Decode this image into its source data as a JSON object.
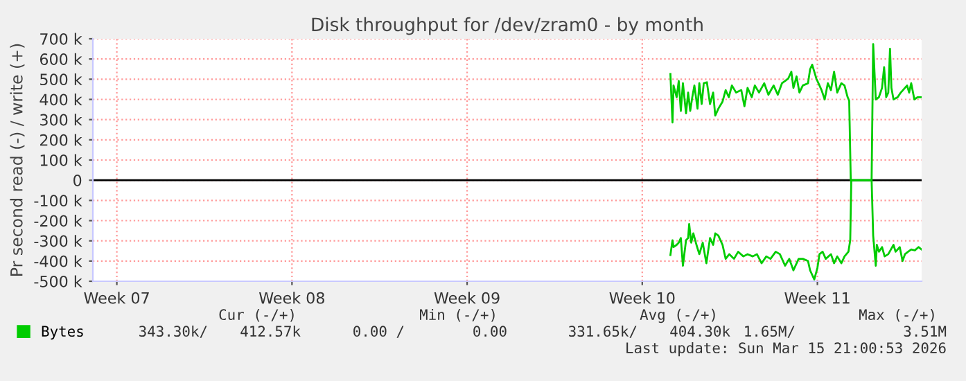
{
  "chart_data": {
    "type": "line",
    "title": "Disk throughput for /dev/zram0 - by month",
    "ylabel": "Pr second read (-) / write (+)",
    "series": [
      {
        "name": "Bytes",
        "color": "#00cc00",
        "x": [
          "2026-03-05T20:00",
          "2026-03-05T22:00",
          "2026-03-05T23:00",
          "2026-03-06T02:00",
          "2026-03-06T04:00",
          "2026-03-06T06:00",
          "2026-03-06T08:00",
          "2026-03-06T11:00",
          "2026-03-06T13:00",
          "2026-03-06T15:00",
          "2026-03-06T17:00",
          "2026-03-06T19:00",
          "2026-03-06T22:00",
          "2026-03-06T23:45",
          "2026-03-07T02:00",
          "2026-03-07T04:00",
          "2026-03-07T07:00",
          "2026-03-07T10:00",
          "2026-03-07T13:00",
          "2026-03-07T15:00",
          "2026-03-07T18:00",
          "2026-03-07T22:00",
          "2026-03-08T01:00",
          "2026-03-08T04:00",
          "2026-03-08T07:00",
          "2026-03-08T11:00",
          "2026-03-08T16:00",
          "2026-03-08T19:00",
          "2026-03-08T22:00",
          "2026-03-09T02:00",
          "2026-03-09T05:00",
          "2026-03-09T09:00",
          "2026-03-09T14:00",
          "2026-03-09T18:00",
          "2026-03-09T23:00",
          "2026-03-10T03:00",
          "2026-03-10T07:00",
          "2026-03-10T10:00",
          "2026-03-10T13:00",
          "2026-03-10T16:00",
          "2026-03-10T18:00",
          "2026-03-10T21:00",
          "2026-03-10T23:45",
          "2026-03-11T03:00",
          "2026-03-11T08:00",
          "2026-03-11T10:00",
          "2026-03-11T12:00",
          "2026-03-11T16:00",
          "2026-03-11T19:00",
          "2026-03-11T21:00",
          "2026-03-12T00:00",
          "2026-03-12T03:00",
          "2026-03-12T06:00",
          "2026-03-12T09:00",
          "2026-03-12T12:00",
          "2026-03-12T16:00",
          "2026-03-12T19:00",
          "2026-03-12T22:00",
          "2026-03-12T23:30",
          "2026-03-13T01:00",
          "2026-03-13T21:00",
          "2026-03-13T22:30",
          "2026-03-14T01:00",
          "2026-03-14T04:00",
          "2026-03-14T07:00",
          "2026-03-14T09:00",
          "2026-03-14T11:00",
          "2026-03-14T13:00",
          "2026-03-14T14:40",
          "2026-03-14T16:00",
          "2026-03-14T18:00",
          "2026-03-14T22:00",
          "2026-03-15T01:00",
          "2026-03-15T05:00",
          "2026-03-15T07:00",
          "2026-03-15T09:00",
          "2026-03-15T11:00",
          "2026-03-15T14:00",
          "2026-03-15T17:00",
          "2026-03-15T21:00"
        ],
        "values": [
          526,
          286,
          469,
          411,
          491,
          343,
          480,
          331,
          434,
          343,
          411,
          469,
          354,
          480,
          377,
          480,
          485,
          377,
          434,
          320,
          354,
          389,
          446,
          411,
          469,
          434,
          446,
          366,
          457,
          411,
          469,
          434,
          480,
          423,
          469,
          423,
          480,
          491,
          503,
          537,
          457,
          514,
          434,
          469,
          480,
          549,
          572,
          503,
          469,
          446,
          400,
          480,
          446,
          537,
          434,
          480,
          469,
          411,
          393,
          0,
          0,
          674,
          400,
          411,
          457,
          560,
          411,
          434,
          651,
          457,
          400,
          411,
          434,
          457,
          469,
          434,
          480,
          400,
          411,
          411
        ]
      },
      {
        "color": "#00cc00",
        "x": [
          "2026-03-05T20:00",
          "2026-03-05T22:00",
          "2026-03-05T23:00",
          "2026-03-06T02:00",
          "2026-03-06T04:00",
          "2026-03-06T06:00",
          "2026-03-06T08:00",
          "2026-03-06T11:00",
          "2026-03-06T13:00",
          "2026-03-06T14:00",
          "2026-03-06T16:00",
          "2026-03-06T18:00",
          "2026-03-06T21:00",
          "2026-03-06T23:45",
          "2026-03-07T03:00",
          "2026-03-07T06:30",
          "2026-03-07T10:00",
          "2026-03-07T13:00",
          "2026-03-07T15:00",
          "2026-03-07T18:00",
          "2026-03-07T22:00",
          "2026-03-08T01:00",
          "2026-03-08T04:30",
          "2026-03-08T09:00",
          "2026-03-08T13:00",
          "2026-03-08T18:00",
          "2026-03-08T22:00",
          "2026-03-09T03:00",
          "2026-03-09T07:00",
          "2026-03-09T11:30",
          "2026-03-09T16:00",
          "2026-03-09T20:00",
          "2026-03-10T01:00",
          "2026-03-10T05:00",
          "2026-03-10T10:00",
          "2026-03-10T14:00",
          "2026-03-10T18:00",
          "2026-03-10T23:00",
          "2026-03-11T03:00",
          "2026-03-11T08:00",
          "2026-03-11T10:00",
          "2026-03-11T14:00",
          "2026-03-11T17:00",
          "2026-03-11T19:00",
          "2026-03-11T22:00",
          "2026-03-12T01:00",
          "2026-03-12T06:00",
          "2026-03-12T09:00",
          "2026-03-12T12:00",
          "2026-03-12T16:00",
          "2026-03-12T19:00",
          "2026-03-12T22:45",
          "2026-03-13T00:30",
          "2026-03-13T01:30",
          "2026-03-13T21:00",
          "2026-03-13T22:30",
          "2026-03-14T01:00",
          "2026-03-14T02:00",
          "2026-03-14T04:00",
          "2026-03-14T07:00",
          "2026-03-14T09:30",
          "2026-03-14T13:00",
          "2026-03-14T18:00",
          "2026-03-14T20:00",
          "2026-03-15T00:00",
          "2026-03-15T02:40",
          "2026-03-15T05:00",
          "2026-03-15T08:00",
          "2026-03-15T11:00",
          "2026-03-15T14:30",
          "2026-03-15T18:00",
          "2026-03-15T21:00"
        ],
        "values": [
          -370,
          -297,
          -331,
          -320,
          -309,
          -286,
          -423,
          -297,
          -286,
          -217,
          -309,
          -263,
          -320,
          -366,
          -309,
          -411,
          -286,
          -320,
          -263,
          -274,
          -320,
          -389,
          -366,
          -389,
          -354,
          -377,
          -366,
          -377,
          -366,
          -411,
          -377,
          -389,
          -354,
          -366,
          -423,
          -389,
          -446,
          -389,
          -389,
          -400,
          -446,
          -491,
          -434,
          -366,
          -354,
          -389,
          -366,
          -411,
          -377,
          -411,
          -377,
          -354,
          -297,
          0,
          0,
          -274,
          -423,
          -320,
          -354,
          -331,
          -377,
          -366,
          -320,
          -354,
          -331,
          -400,
          -366,
          -354,
          -343,
          -347,
          -331,
          -343
        ]
      }
    ],
    "xlim": [
      "2026-02-10T18:00",
      "2026-03-15T21:00"
    ],
    "xticks": [
      {
        "value": "2026-02-11T17:00",
        "label": "Week 07"
      },
      {
        "value": "2026-02-18T17:00",
        "label": "Week 08"
      },
      {
        "value": "2026-02-25T17:00",
        "label": "Week 09"
      },
      {
        "value": "2026-03-04T17:00",
        "label": "Week 10"
      },
      {
        "value": "2026-03-11T17:00",
        "label": "Week 11"
      }
    ],
    "ylim": [
      -500,
      700
    ],
    "yticks": [
      {
        "value": -500,
        "label": "-500 k"
      },
      {
        "value": -400,
        "label": "-400 k"
      },
      {
        "value": -300,
        "label": "-300 k"
      },
      {
        "value": -200,
        "label": "-200 k"
      },
      {
        "value": -100,
        "label": "-100 k"
      },
      0,
      {
        "value": 100,
        "label": "100 k"
      },
      {
        "value": 200,
        "label": "200 k"
      },
      {
        "value": 300,
        "label": "300 k"
      },
      {
        "value": 400,
        "label": "400 k"
      },
      {
        "value": 500,
        "label": "500 k"
      },
      {
        "value": 600,
        "label": "600 k"
      },
      {
        "value": 700,
        "label": "700 k"
      }
    ],
    "ref_lines": [
      {
        "axis": "y",
        "value": 0,
        "color": "#000000"
      }
    ],
    "grid": true,
    "legend": "bottom left",
    "line_style": "solid",
    "annotations": [
      "Cur (-/+)",
      "Min (-/+)",
      "Avg (-/+)",
      "Max (-/+)",
      "343.30k/",
      "412.57k",
      "0.00 /",
      "0.00",
      "331.65k/",
      "404.30k",
      "1.65M/",
      "3.51M",
      "Last update: Sun Mar 15 21:00:53 2026"
    ]
  }
}
